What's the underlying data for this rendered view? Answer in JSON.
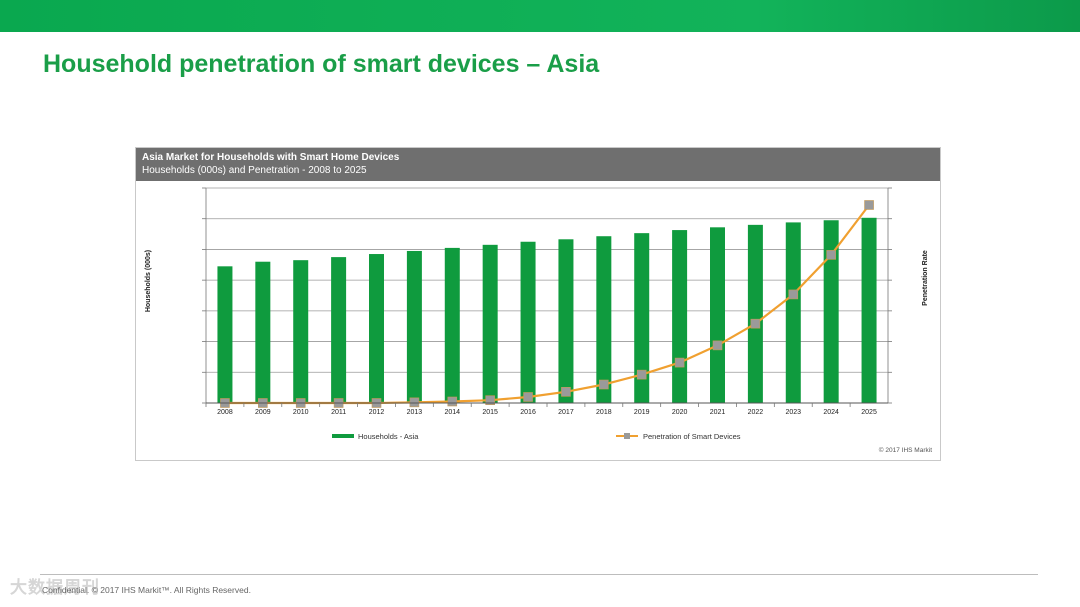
{
  "slide": {
    "title": "Household penetration of smart devices – Asia",
    "footer": "Confidential. © 2017 IHS Markit™. All Rights Reserved.",
    "watermark": "大数据周刊"
  },
  "colors": {
    "brand_green": "#1a9e48",
    "bar": "#0f9b3e",
    "line": "#f0a030",
    "marker": "#9a9a9a",
    "header_bg": "#6f6f6f"
  },
  "chart_data": {
    "type": "bar",
    "title": "Asia Market for Households with Smart Home Devices",
    "subtitle": "Households (000s) and Penetration - 2008 to 2025",
    "ylabel": "Households (000s)",
    "y2label": "Penetration Rate",
    "source": "© 2017 IHS Markit",
    "grid": true,
    "legend_position": "bottom",
    "ylim": [
      0,
      7
    ],
    "y2lim": [
      0,
      100
    ],
    "categories": [
      "2008",
      "2009",
      "2010",
      "2011",
      "2012",
      "2013",
      "2014",
      "2015",
      "2016",
      "2017",
      "2018",
      "2019",
      "2020",
      "2021",
      "2022",
      "2023",
      "2024",
      "2025"
    ],
    "series": [
      {
        "name": "Households - Asia",
        "type": "bar",
        "values": [
          4.45,
          4.6,
          4.65,
          4.75,
          4.85,
          4.95,
          5.05,
          5.15,
          5.25,
          5.33,
          5.43,
          5.53,
          5.63,
          5.72,
          5.8,
          5.88,
          5.95,
          6.03
        ]
      },
      {
        "name": "Penetration of Smart Devices",
        "type": "line",
        "axis": "right",
        "values": [
          0,
          0,
          0,
          0,
          0,
          0.3,
          0.7,
          1.3,
          2.8,
          5.2,
          8.6,
          13.2,
          18.8,
          26.8,
          36.9,
          50.5,
          68.9,
          92.1
        ]
      }
    ]
  }
}
